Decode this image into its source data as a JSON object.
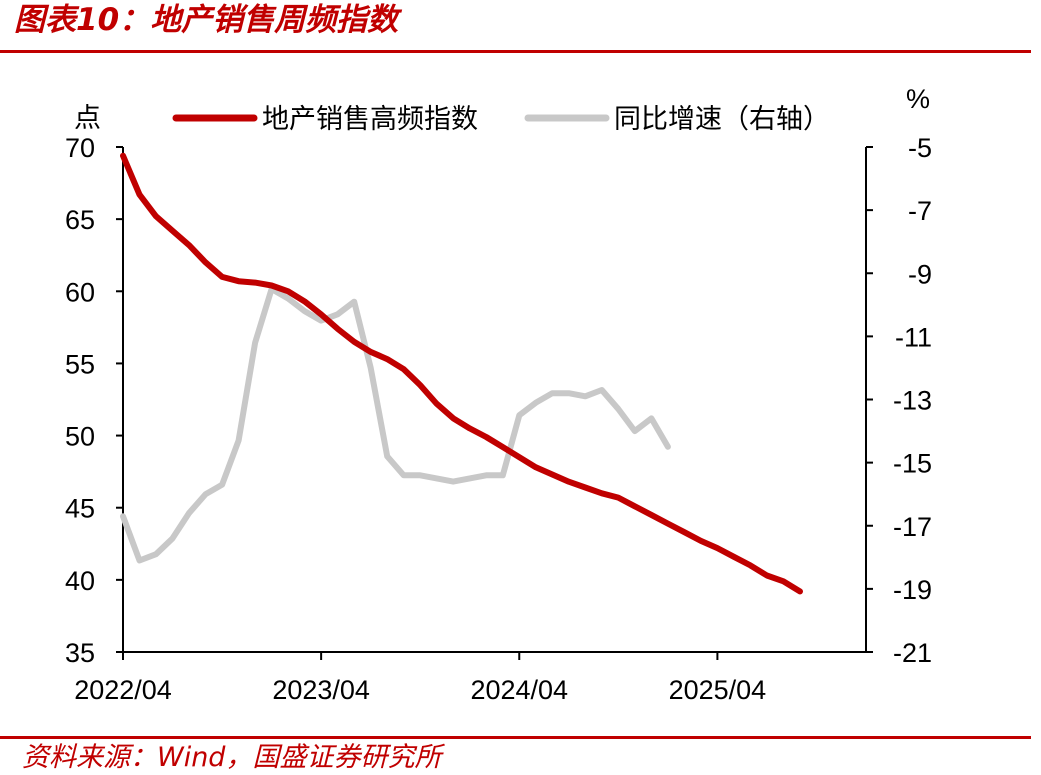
{
  "header": {
    "title": "图表10：地产销售周频指数"
  },
  "footer": {
    "source": "资料来源：Wind，国盛证券研究所"
  },
  "colors": {
    "accent": "#c00000",
    "index_line": "#c00000",
    "yoy_line": "#c8c8c8"
  },
  "chart_data": {
    "type": "line",
    "title": "",
    "y_left": {
      "unit_label": "点",
      "min": 35,
      "max": 70,
      "ticks": [
        "70",
        "65",
        "60",
        "55",
        "50",
        "45",
        "40",
        "35"
      ]
    },
    "y_right": {
      "unit_label": "%",
      "min": -21,
      "max": -5,
      "ticks": [
        "-5",
        "-7",
        "-9",
        "-11",
        "-13",
        "-15",
        "-17",
        "-19",
        "-21"
      ]
    },
    "x_axis": {
      "start": "2022-04",
      "end": "2026-01",
      "ticks": [
        {
          "label": "2022/04",
          "month": "2022-04"
        },
        {
          "label": "2023/04",
          "month": "2023-04"
        },
        {
          "label": "2024/04",
          "month": "2024-04"
        },
        {
          "label": "2025/04",
          "month": "2025-04"
        }
      ]
    },
    "legend": {
      "placement": "top"
    },
    "series": [
      {
        "name": "地产销售高频指数",
        "axis": "left",
        "points": [
          [
            "2022-04",
            69.4
          ],
          [
            "2022-05",
            66.7
          ],
          [
            "2022-06",
            65.2
          ],
          [
            "2022-07",
            64.2
          ],
          [
            "2022-08",
            63.2
          ],
          [
            "2022-09",
            62.0
          ],
          [
            "2022-10",
            61.0
          ],
          [
            "2022-11",
            60.7
          ],
          [
            "2022-12",
            60.6
          ],
          [
            "2023-01",
            60.4
          ],
          [
            "2023-02",
            60.0
          ],
          [
            "2023-03",
            59.3
          ],
          [
            "2023-04",
            58.4
          ],
          [
            "2023-05",
            57.4
          ],
          [
            "2023-06",
            56.5
          ],
          [
            "2023-07",
            55.8
          ],
          [
            "2023-08",
            55.3
          ],
          [
            "2023-09",
            54.6
          ],
          [
            "2023-10",
            53.5
          ],
          [
            "2023-11",
            52.2
          ],
          [
            "2023-12",
            51.2
          ],
          [
            "2024-01",
            50.5
          ],
          [
            "2024-02",
            49.9
          ],
          [
            "2024-03",
            49.2
          ],
          [
            "2024-04",
            48.5
          ],
          [
            "2024-05",
            47.8
          ],
          [
            "2024-06",
            47.3
          ],
          [
            "2024-07",
            46.8
          ],
          [
            "2024-08",
            46.4
          ],
          [
            "2024-09",
            46.0
          ],
          [
            "2024-10",
            45.7
          ],
          [
            "2024-11",
            45.1
          ],
          [
            "2024-12",
            44.5
          ],
          [
            "2025-01",
            43.9
          ],
          [
            "2025-02",
            43.3
          ],
          [
            "2025-03",
            42.7
          ],
          [
            "2025-04",
            42.2
          ],
          [
            "2025-05",
            41.6
          ],
          [
            "2025-06",
            41.0
          ],
          [
            "2025-07",
            40.3
          ],
          [
            "2025-08",
            39.9
          ],
          [
            "2025-09",
            39.2
          ]
        ]
      },
      {
        "name": "同比增速（右轴）",
        "axis": "right",
        "points": [
          [
            "2022-04",
            -16.7
          ],
          [
            "2022-05",
            -18.1
          ],
          [
            "2022-06",
            -17.9
          ],
          [
            "2022-07",
            -17.4
          ],
          [
            "2022-08",
            -16.6
          ],
          [
            "2022-09",
            -16.0
          ],
          [
            "2022-10",
            -15.7
          ],
          [
            "2022-11",
            -14.3
          ],
          [
            "2022-12",
            -11.2
          ],
          [
            "2023-01",
            -9.5
          ],
          [
            "2023-02",
            -9.8
          ],
          [
            "2023-03",
            -10.2
          ],
          [
            "2023-04",
            -10.5
          ],
          [
            "2023-05",
            -10.3
          ],
          [
            "2023-06",
            -9.9
          ],
          [
            "2023-07",
            -12.0
          ],
          [
            "2023-08",
            -14.8
          ],
          [
            "2023-09",
            -15.4
          ],
          [
            "2023-10",
            -15.4
          ],
          [
            "2023-11",
            -15.5
          ],
          [
            "2023-12",
            -15.6
          ],
          [
            "2024-01",
            -15.5
          ],
          [
            "2024-02",
            -15.4
          ],
          [
            "2024-03",
            -15.4
          ],
          [
            "2024-04",
            -13.5
          ],
          [
            "2024-05",
            -13.1
          ],
          [
            "2024-06",
            -12.8
          ],
          [
            "2024-07",
            -12.8
          ],
          [
            "2024-08",
            -12.9
          ],
          [
            "2024-09",
            -12.7
          ],
          [
            "2024-10",
            -13.3
          ],
          [
            "2024-11",
            -14.0
          ],
          [
            "2024-12",
            -13.6
          ],
          [
            "2025-01",
            -14.5
          ]
        ]
      }
    ]
  }
}
